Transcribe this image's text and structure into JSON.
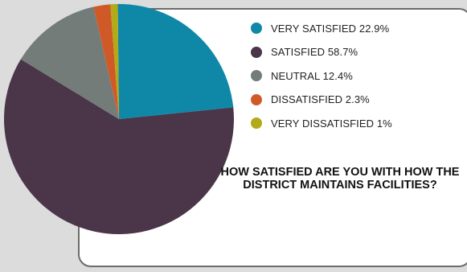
{
  "chart_data": {
    "type": "pie",
    "title": "HOW SATISFIED ARE YOU WITH HOW THE DISTRICT MAINTAINS FACILITIES?",
    "legend_position": "top-right",
    "slices": [
      {
        "label": "VERY SATISFIED",
        "value": 22.9,
        "value_text": "22.9%",
        "color": "#0f88a8"
      },
      {
        "label": "SATISFIED",
        "value": 58.7,
        "value_text": "58.7%",
        "color": "#4a3549"
      },
      {
        "label": "NEUTRAL",
        "value": 12.4,
        "value_text": "12.4%",
        "color": "#737c78"
      },
      {
        "label": "DISSATISFIED",
        "value": 2.3,
        "value_text": "2.3%",
        "color": "#cf5a28"
      },
      {
        "label": "VERY DISSATISFIED",
        "value": 1,
        "value_text": "1%",
        "color": "#b2aa18"
      }
    ]
  }
}
